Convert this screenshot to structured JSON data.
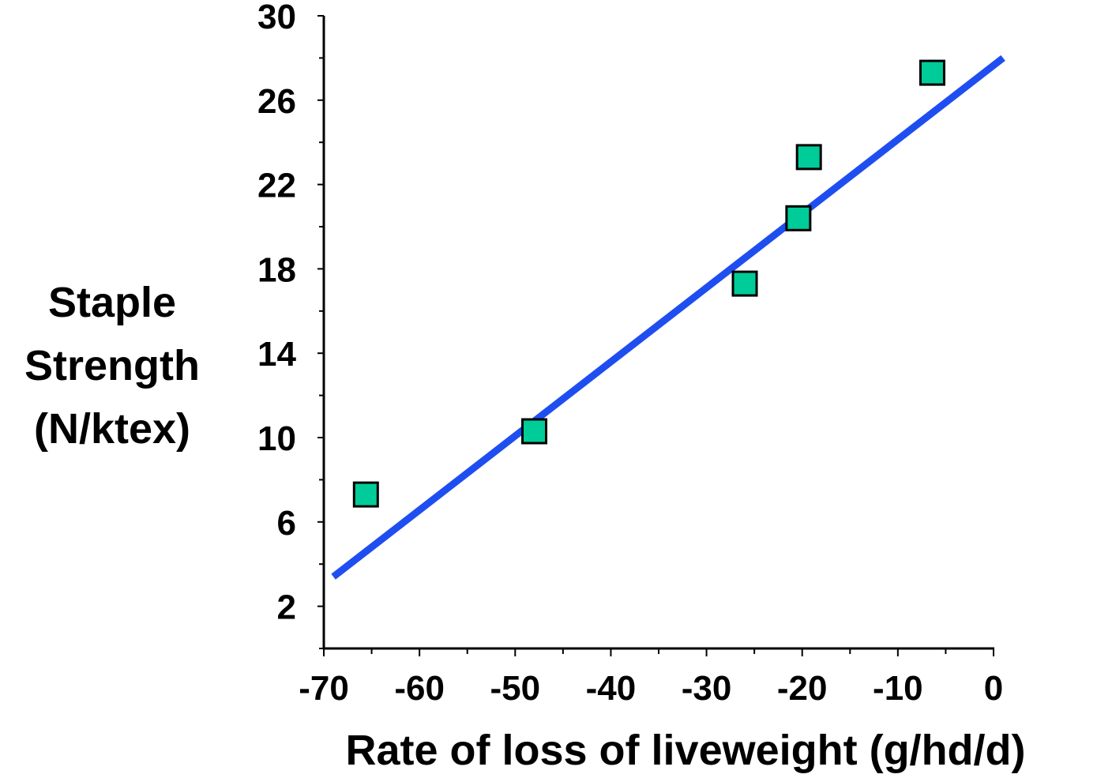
{
  "chart_data": {
    "type": "scatter",
    "title": "",
    "xlabel": "Rate of loss of liveweight (g/hd/d)",
    "ylabel_lines": [
      "Staple",
      "Strength",
      "(N/ktex)"
    ],
    "xlim": [
      -70,
      0
    ],
    "ylim": [
      0,
      30
    ],
    "x_ticks": [
      -70,
      -60,
      -50,
      -40,
      -30,
      -20,
      -10,
      0
    ],
    "x_minor_ticks": [
      -65,
      -55,
      -45,
      -35,
      -25,
      -15,
      -5
    ],
    "y_ticks": [
      2,
      6,
      10,
      14,
      18,
      22,
      26,
      30
    ],
    "y_minor_ticks": [
      0,
      4,
      8,
      12,
      16,
      20,
      24,
      28
    ],
    "grid": false,
    "legend": "none",
    "points": [
      {
        "x": -65.6,
        "y": 7.3
      },
      {
        "x": -48.0,
        "y": 10.3
      },
      {
        "x": -26.0,
        "y": 17.3
      },
      {
        "x": -20.4,
        "y": 20.4
      },
      {
        "x": -19.3,
        "y": 23.3
      },
      {
        "x": -6.4,
        "y": 27.3
      }
    ],
    "fit_line": {
      "x1": -69.0,
      "y1": 3.4,
      "x2": 1.0,
      "y2": 28.0
    },
    "colors": {
      "marker_fill": "#00CC99",
      "marker_stroke": "#000000",
      "line": "#1F4EF0",
      "axis": "#000000"
    }
  }
}
